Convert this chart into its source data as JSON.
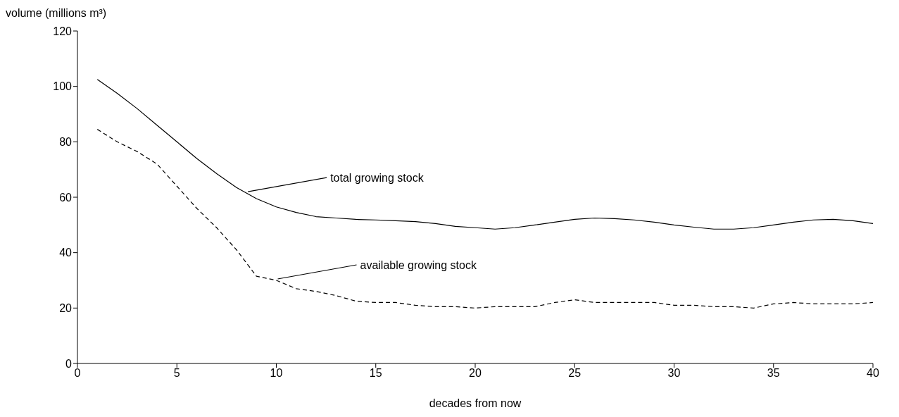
{
  "chart_data": {
    "type": "line",
    "xlabel": "decades from now",
    "ylabel": "volume (millions m³)",
    "x": [
      1,
      2,
      3,
      4,
      5,
      6,
      7,
      8,
      9,
      10,
      11,
      12,
      13,
      14,
      15,
      16,
      17,
      18,
      19,
      20,
      21,
      22,
      23,
      24,
      25,
      26,
      27,
      28,
      29,
      30,
      31,
      32,
      33,
      34,
      35,
      36,
      37,
      38,
      39,
      40
    ],
    "series": [
      {
        "color": "#000000",
        "line_style": "solid",
        "values": [
          102.5,
          97.5,
          92,
          86,
          80,
          74,
          68.5,
          63.5,
          59.5,
          56.5,
          54.5,
          53,
          52.5,
          52,
          51.8,
          51.5,
          51.2,
          50.5,
          49.5,
          49,
          48.5,
          49,
          50,
          51,
          52,
          52.5,
          52.3,
          51.8,
          51,
          50,
          49.2,
          48.5,
          48.5,
          49,
          50,
          51,
          51.8,
          52,
          51.5,
          50.5
        ]
      },
      {
        "color": "#000000",
        "line_style": "dashed",
        "values": [
          84.5,
          80,
          76.5,
          72,
          64,
          56,
          49,
          41,
          31.5,
          30,
          27,
          26,
          24.5,
          22.5,
          22,
          22,
          21,
          20.5,
          20.5,
          20,
          20.5,
          20.5,
          20.5,
          22,
          23,
          22,
          22,
          22,
          22,
          21,
          21,
          20.5,
          20.5,
          20,
          21.5,
          22,
          21.5,
          21.5,
          21.5,
          22
        ]
      }
    ],
    "annotations": [
      {
        "text": "total growing stock",
        "x": 8.5,
        "y": 61.5
      },
      {
        "text": "available growing stock",
        "x": 10,
        "y": 30
      }
    ],
    "xlim": [
      0,
      40
    ],
    "xticks": [
      0,
      5,
      10,
      15,
      20,
      25,
      30,
      35,
      40
    ],
    "ylim": [
      0,
      120
    ],
    "yticks": [
      0,
      20,
      40,
      60,
      80,
      100,
      120
    ],
    "grid": false,
    "legend": false,
    "marker": "none"
  }
}
